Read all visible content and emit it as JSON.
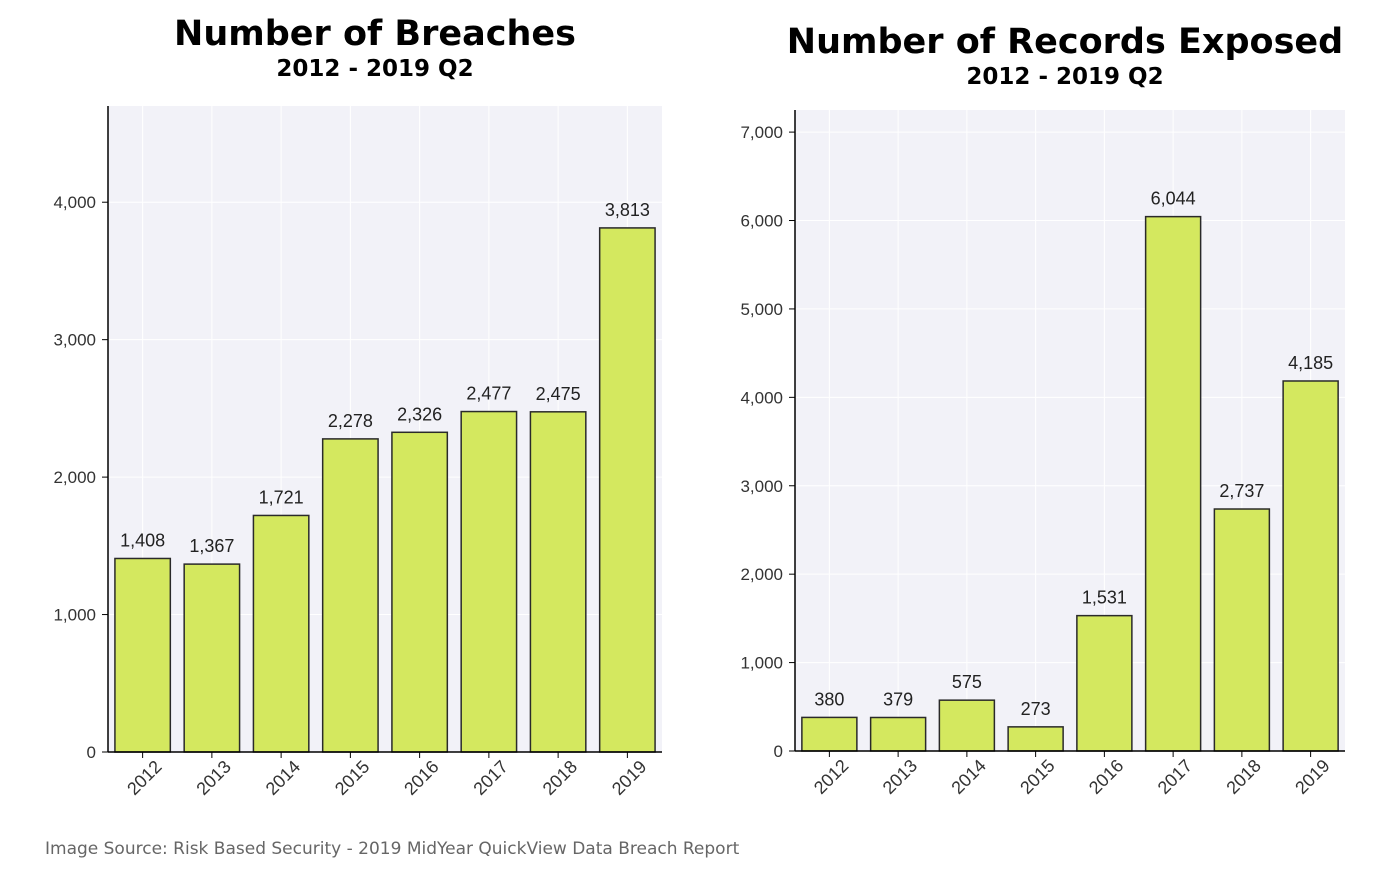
{
  "colors": {
    "bar": "#d4e85f",
    "bar_stroke": "#2a2a2a",
    "plot_bg": "#f2f2f8",
    "grid": "#ffffff"
  },
  "chart_data": [
    {
      "type": "bar",
      "title": "Number of Breaches",
      "subtitle": "2012 - 2019 Q2",
      "xlabel": "",
      "ylabel": "",
      "categories": [
        "2012",
        "2013",
        "2014",
        "2015",
        "2016",
        "2017",
        "2018",
        "2019"
      ],
      "values": [
        1408,
        1367,
        1721,
        2278,
        2326,
        2477,
        2475,
        3813
      ],
      "data_labels": [
        "1,408",
        "1,367",
        "1,721",
        "2,278",
        "2,326",
        "2,477",
        "2,475",
        "3,813"
      ],
      "ylim": [
        0,
        4700
      ],
      "yticks": [
        0,
        1000,
        2000,
        3000,
        4000
      ],
      "ytick_labels": [
        "0",
        "1,000",
        "2,000",
        "3,000",
        "4,000"
      ],
      "grid": true
    },
    {
      "type": "bar",
      "title": "Number of Records Exposed",
      "subtitle": "2012 - 2019 Q2",
      "xlabel": "",
      "ylabel": "",
      "categories": [
        "2012",
        "2013",
        "2014",
        "2015",
        "2016",
        "2017",
        "2018",
        "2019"
      ],
      "values": [
        380,
        379,
        575,
        273,
        1531,
        6044,
        2737,
        4185
      ],
      "data_labels": [
        "380",
        "379",
        "575",
        "273",
        "1,531",
        "6,044",
        "2,737",
        "4,185"
      ],
      "ylim": [
        0,
        7250
      ],
      "yticks": [
        0,
        1000,
        2000,
        3000,
        4000,
        5000,
        6000,
        7000
      ],
      "ytick_labels": [
        "0",
        "1,000",
        "2,000",
        "3,000",
        "4,000",
        "5,000",
        "6,000",
        "7,000"
      ],
      "grid": true
    }
  ],
  "source": "Image Source: Risk Based Security - 2019 MidYear QuickView Data Breach Report"
}
